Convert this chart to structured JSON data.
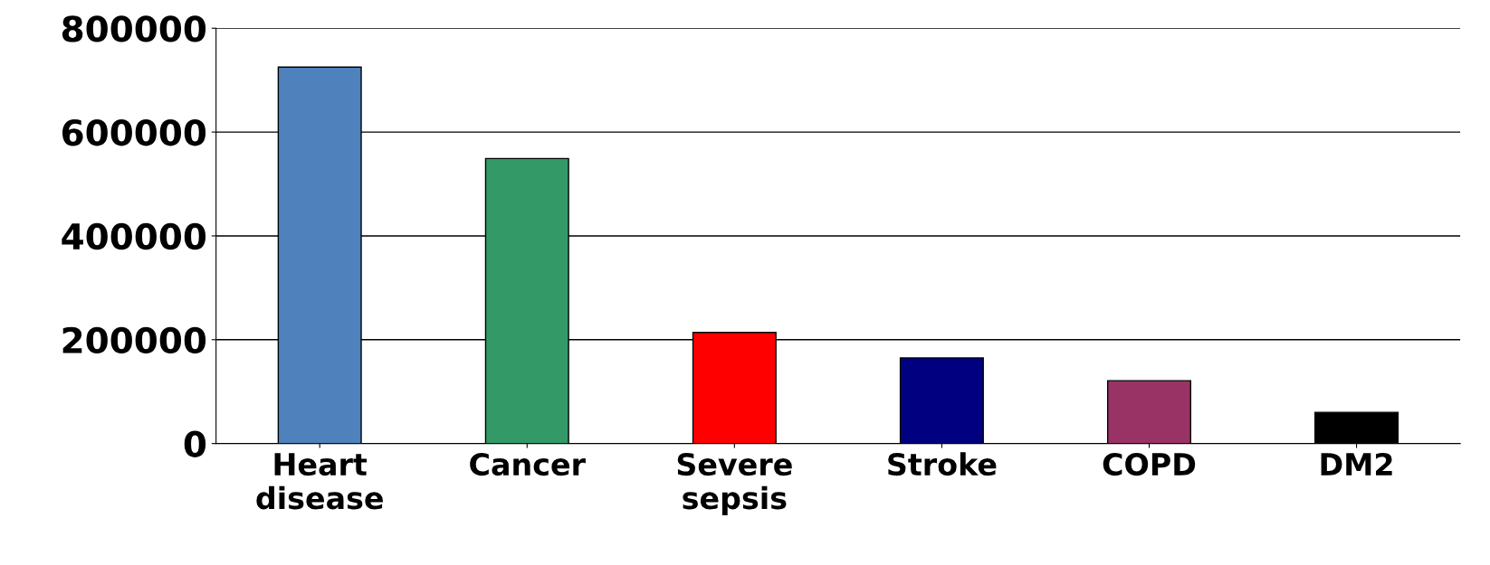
{
  "chart_data": {
    "type": "bar",
    "categories": [
      "Heart\ndisease",
      "Cancer",
      "Severe\nsepsis",
      "Stroke",
      "COPD",
      "DM2"
    ],
    "values": [
      725000,
      549000,
      214000,
      165000,
      121000,
      60000
    ],
    "colors": [
      "#4f81bd",
      "#339966",
      "#ff0000",
      "#000080",
      "#993366",
      "#000000"
    ],
    "ylim": [
      0,
      800000
    ],
    "yticks": [
      0,
      200000,
      400000,
      600000,
      800000
    ],
    "grid": "y"
  }
}
